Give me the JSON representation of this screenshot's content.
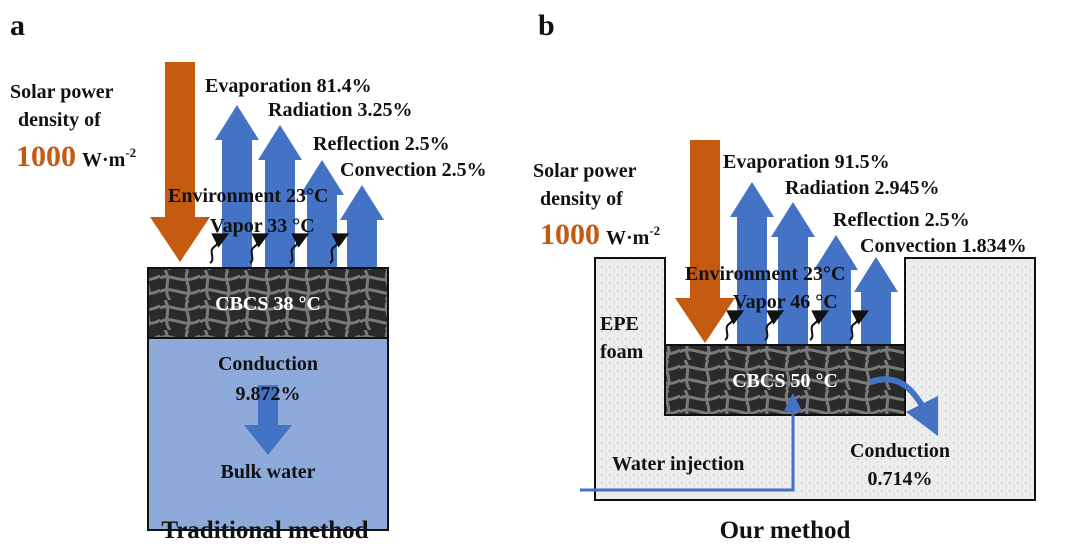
{
  "panels": [
    {
      "label": "a",
      "solar": {
        "line1": "Solar power",
        "line2": "density of",
        "value": "1000",
        "unit": "W·m",
        "exponent": "-2"
      },
      "outputs": [
        "Evaporation 81.4%",
        "Radiation 3.25%",
        "Reflection 2.5%",
        "Convection 2.5%"
      ],
      "environment": "Environment 23°C",
      "vapor": "Vapor 33 °C",
      "absorber": "CBCS 38 °C",
      "conduction": [
        "Conduction",
        "9.872%"
      ],
      "bulk": "Bulk water",
      "caption": "Traditional method"
    },
    {
      "label": "b",
      "solar": {
        "line1": "Solar power",
        "line2": "density of",
        "value": "1000",
        "unit": "W·m",
        "exponent": "-2"
      },
      "outputs": [
        "Evaporation 91.5%",
        "Radiation 2.945%",
        "Reflection 2.5%",
        "Convection 1.834%"
      ],
      "environment": "Environment 23°C",
      "vapor": "Vapor 46 °C",
      "absorber": "CBCS 50 °C",
      "foam": [
        "EPE",
        "foam"
      ],
      "conduction": [
        "Conduction",
        "0.714%"
      ],
      "water": "Water injection",
      "caption": "Our method"
    }
  ]
}
